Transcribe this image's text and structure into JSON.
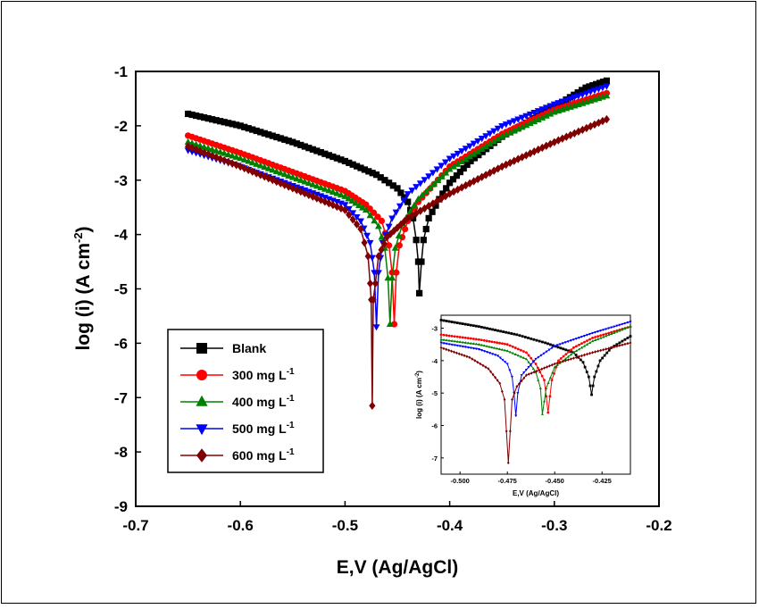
{
  "chart_data": [
    {
      "type": "line",
      "xlabel": "E,V (Ag/AgCl)",
      "ylabel_parts": [
        "log (i) (A cm",
        "-2",
        ")"
      ],
      "xlim": [
        -0.7,
        -0.2
      ],
      "ylim": [
        -9,
        -1
      ],
      "x_ticks": [
        "-0.7",
        "-0.6",
        "-0.5",
        "-0.4",
        "-0.3",
        "-0.2"
      ],
      "y_ticks": [
        "-1",
        "-2",
        "-3",
        "-4",
        "-5",
        "-6",
        "-7",
        "-8",
        "-9"
      ],
      "legend_position": "lower-left",
      "series": [
        {
          "name": "Blank",
          "unit_sup": "",
          "color": "#000000",
          "marker": "square",
          "points": [
            [
              -0.65,
              -1.78
            ],
            [
              -0.6,
              -2.0
            ],
            [
              -0.55,
              -2.3
            ],
            [
              -0.5,
              -2.65
            ],
            [
              -0.47,
              -2.9
            ],
            [
              -0.45,
              -3.15
            ],
            [
              -0.44,
              -3.4
            ],
            [
              -0.435,
              -3.7
            ],
            [
              -0.432,
              -4.1
            ],
            [
              -0.43,
              -4.5
            ],
            [
              -0.429,
              -5.08
            ],
            [
              -0.427,
              -4.5
            ],
            [
              -0.425,
              -4.1
            ],
            [
              -0.42,
              -3.7
            ],
            [
              -0.41,
              -3.35
            ],
            [
              -0.4,
              -3.05
            ],
            [
              -0.38,
              -2.65
            ],
            [
              -0.35,
              -2.2
            ],
            [
              -0.3,
              -1.65
            ],
            [
              -0.27,
              -1.3
            ],
            [
              -0.25,
              -1.17
            ]
          ]
        },
        {
          "name": "300 mg L",
          "unit_sup": "-1",
          "color": "#ff0000",
          "marker": "circle",
          "points": [
            [
              -0.65,
              -2.18
            ],
            [
              -0.6,
              -2.5
            ],
            [
              -0.55,
              -2.85
            ],
            [
              -0.5,
              -3.2
            ],
            [
              -0.48,
              -3.45
            ],
            [
              -0.465,
              -3.75
            ],
            [
              -0.458,
              -4.2
            ],
            [
              -0.455,
              -4.7
            ],
            [
              -0.453,
              -5.65
            ],
            [
              -0.451,
              -4.7
            ],
            [
              -0.448,
              -4.2
            ],
            [
              -0.44,
              -3.75
            ],
            [
              -0.43,
              -3.4
            ],
            [
              -0.4,
              -2.75
            ],
            [
              -0.35,
              -2.15
            ],
            [
              -0.3,
              -1.7
            ],
            [
              -0.25,
              -1.4
            ]
          ]
        },
        {
          "name": "400 mg L",
          "unit_sup": "-1",
          "color": "#008000",
          "marker": "triangle-up",
          "points": [
            [
              -0.65,
              -2.3
            ],
            [
              -0.6,
              -2.6
            ],
            [
              -0.55,
              -2.95
            ],
            [
              -0.5,
              -3.3
            ],
            [
              -0.48,
              -3.55
            ],
            [
              -0.468,
              -3.85
            ],
            [
              -0.462,
              -4.25
            ],
            [
              -0.459,
              -4.8
            ],
            [
              -0.457,
              -5.65
            ],
            [
              -0.455,
              -4.8
            ],
            [
              -0.452,
              -4.25
            ],
            [
              -0.445,
              -3.8
            ],
            [
              -0.43,
              -3.35
            ],
            [
              -0.4,
              -2.8
            ],
            [
              -0.35,
              -2.2
            ],
            [
              -0.3,
              -1.75
            ],
            [
              -0.25,
              -1.45
            ]
          ]
        },
        {
          "name": "500 mg L",
          "unit_sup": "-1",
          "color": "#0000ff",
          "marker": "triangle-down",
          "points": [
            [
              -0.65,
              -2.45
            ],
            [
              -0.6,
              -2.75
            ],
            [
              -0.55,
              -3.1
            ],
            [
              -0.5,
              -3.45
            ],
            [
              -0.485,
              -3.75
            ],
            [
              -0.476,
              -4.15
            ],
            [
              -0.472,
              -4.7
            ],
            [
              -0.47,
              -5.7
            ],
            [
              -0.468,
              -4.7
            ],
            [
              -0.464,
              -4.15
            ],
            [
              -0.455,
              -3.7
            ],
            [
              -0.44,
              -3.25
            ],
            [
              -0.4,
              -2.6
            ],
            [
              -0.35,
              -2.0
            ],
            [
              -0.3,
              -1.6
            ],
            [
              -0.25,
              -1.27
            ]
          ]
        },
        {
          "name": "600 mg L",
          "unit_sup": "-1",
          "color": "#800000",
          "marker": "diamond",
          "points": [
            [
              -0.65,
              -2.38
            ],
            [
              -0.6,
              -2.75
            ],
            [
              -0.55,
              -3.15
            ],
            [
              -0.5,
              -3.55
            ],
            [
              -0.485,
              -3.9
            ],
            [
              -0.478,
              -4.4
            ],
            [
              -0.476,
              -4.9
            ],
            [
              -0.475,
              -5.2
            ],
            [
              -0.474,
              -7.15
            ],
            [
              -0.473,
              -5.2
            ],
            [
              -0.471,
              -4.9
            ],
            [
              -0.468,
              -4.4
            ],
            [
              -0.46,
              -4.05
            ],
            [
              -0.44,
              -3.7
            ],
            [
              -0.4,
              -3.25
            ],
            [
              -0.35,
              -2.75
            ],
            [
              -0.3,
              -2.3
            ],
            [
              -0.25,
              -1.88
            ]
          ]
        }
      ]
    },
    {
      "type": "line",
      "role": "inset",
      "xlabel": "E,V (Ag/AgCl)",
      "ylabel_parts": [
        "log (i) (A cm",
        "-2",
        ")"
      ],
      "xlim": [
        -0.51,
        -0.41
      ],
      "ylim": [
        -7.5,
        -2.6
      ],
      "x_ticks": [
        "-0.500",
        "-0.475",
        "-0.450",
        "-0.425"
      ],
      "x_tick_values": [
        -0.5,
        -0.475,
        -0.45,
        -0.425
      ],
      "y_ticks": [
        "-3",
        "-4",
        "-5",
        "-6",
        "-7"
      ],
      "y_tick_values": [
        -3,
        -4,
        -5,
        -6,
        -7
      ],
      "series": [
        {
          "name": "Blank",
          "color": "#000000",
          "marker": "square",
          "points": [
            [
              -0.51,
              -2.75
            ],
            [
              -0.49,
              -2.95
            ],
            [
              -0.47,
              -3.2
            ],
            [
              -0.455,
              -3.45
            ],
            [
              -0.44,
              -3.75
            ],
            [
              -0.435,
              -4.05
            ],
            [
              -0.432,
              -4.5
            ],
            [
              -0.4305,
              -5.05
            ],
            [
              -0.429,
              -4.5
            ],
            [
              -0.426,
              -4.0
            ],
            [
              -0.42,
              -3.6
            ],
            [
              -0.41,
              -3.25
            ]
          ]
        },
        {
          "name": "300",
          "color": "#ff0000",
          "marker": "circle",
          "points": [
            [
              -0.51,
              -3.2
            ],
            [
              -0.49,
              -3.35
            ],
            [
              -0.475,
              -3.5
            ],
            [
              -0.465,
              -3.75
            ],
            [
              -0.46,
              -4.1
            ],
            [
              -0.4555,
              -4.6
            ],
            [
              -0.4535,
              -5.6
            ],
            [
              -0.4515,
              -4.6
            ],
            [
              -0.448,
              -4.0
            ],
            [
              -0.44,
              -3.6
            ],
            [
              -0.43,
              -3.3
            ],
            [
              -0.41,
              -2.95
            ]
          ]
        },
        {
          "name": "400",
          "color": "#008000",
          "marker": "triangle-up",
          "points": [
            [
              -0.51,
              -3.35
            ],
            [
              -0.49,
              -3.5
            ],
            [
              -0.475,
              -3.7
            ],
            [
              -0.465,
              -3.95
            ],
            [
              -0.46,
              -4.35
            ],
            [
              -0.4575,
              -4.85
            ],
            [
              -0.4565,
              -5.65
            ],
            [
              -0.4545,
              -4.85
            ],
            [
              -0.45,
              -4.2
            ],
            [
              -0.44,
              -3.75
            ],
            [
              -0.43,
              -3.4
            ],
            [
              -0.41,
              -2.95
            ]
          ]
        },
        {
          "name": "500",
          "color": "#0000ff",
          "marker": "triangle-down",
          "points": [
            [
              -0.51,
              -3.45
            ],
            [
              -0.49,
              -3.65
            ],
            [
              -0.48,
              -3.85
            ],
            [
              -0.475,
              -4.1
            ],
            [
              -0.4725,
              -4.5
            ],
            [
              -0.4715,
              -5.0
            ],
            [
              -0.4705,
              -5.7
            ],
            [
              -0.4695,
              -5.0
            ],
            [
              -0.4675,
              -4.45
            ],
            [
              -0.46,
              -3.95
            ],
            [
              -0.45,
              -3.55
            ],
            [
              -0.43,
              -3.15
            ],
            [
              -0.41,
              -2.8
            ]
          ]
        },
        {
          "name": "600",
          "color": "#800000",
          "marker": "diamond",
          "points": [
            [
              -0.51,
              -3.6
            ],
            [
              -0.495,
              -3.9
            ],
            [
              -0.485,
              -4.25
            ],
            [
              -0.479,
              -4.7
            ],
            [
              -0.4765,
              -5.2
            ],
            [
              -0.4745,
              -7.15
            ],
            [
              -0.4725,
              -5.2
            ],
            [
              -0.47,
              -4.8
            ],
            [
              -0.465,
              -4.45
            ],
            [
              -0.45,
              -4.1
            ],
            [
              -0.43,
              -3.75
            ],
            [
              -0.41,
              -3.45
            ]
          ]
        }
      ]
    }
  ]
}
